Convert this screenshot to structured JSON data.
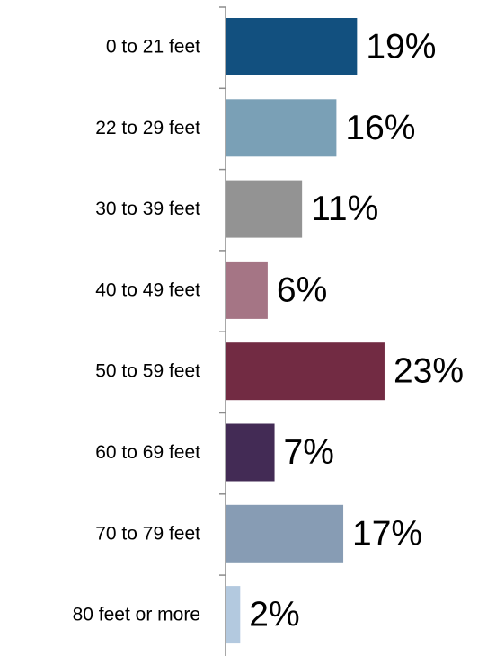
{
  "chart_data": {
    "type": "bar",
    "orientation": "horizontal",
    "categories": [
      "0 to 21 feet",
      "22 to 29 feet",
      "30 to 39 feet",
      "40 to 49 feet",
      "50 to 59 feet",
      "60 to 69 feet",
      "70 to 79 feet",
      "80 feet or more"
    ],
    "values": [
      19,
      16,
      11,
      6,
      23,
      7,
      17,
      2
    ],
    "value_labels": [
      "19%",
      "16%",
      "11%",
      "6%",
      "23%",
      "7%",
      "17%",
      "2%"
    ],
    "colors": [
      "#12507f",
      "#7aa0b6",
      "#939393",
      "#a57585",
      "#722b43",
      "#432b55",
      "#879cb4",
      "#b3c9df"
    ],
    "axis_color": "#8c8c8c",
    "title": "",
    "xlabel": "",
    "ylabel": "",
    "xlim": [
      0,
      23
    ],
    "grid": false,
    "legend": "none"
  }
}
